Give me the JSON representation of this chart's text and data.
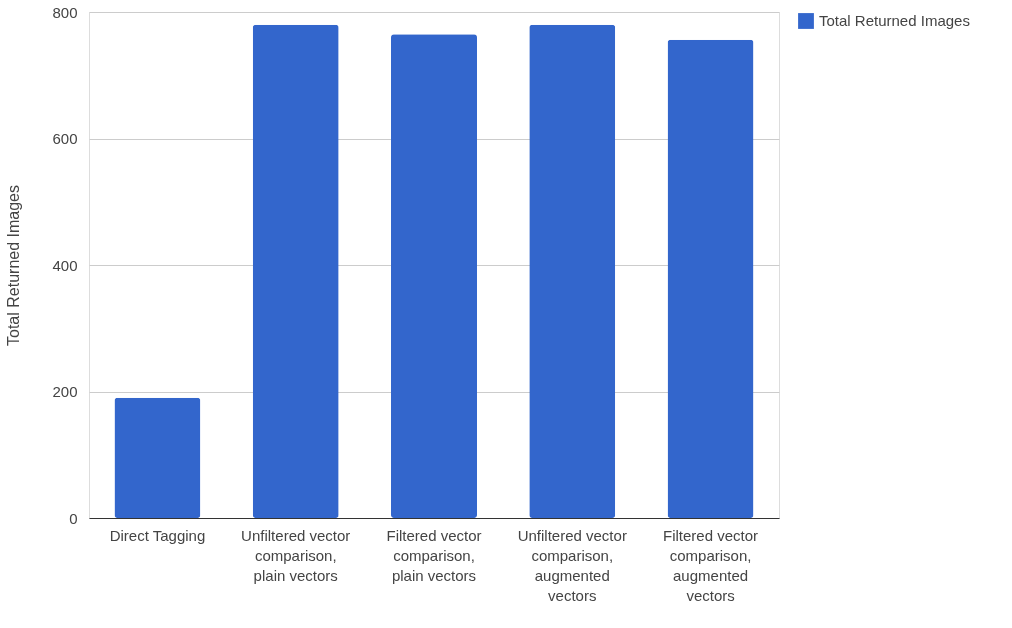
{
  "chart_data": {
    "type": "bar",
    "ylabel": "Total Returned Images",
    "categories": [
      "Direct Tagging",
      "Unfiltered vector comparison, plain vectors",
      "Filtered vector comparison, plain vectors",
      "Unfiltered vector comparison, augmented vectors",
      "Filtered vector comparison, augmented vectors"
    ],
    "series": [
      {
        "name": "Total Returned Images",
        "color": "#3366cc",
        "values": [
          190,
          780,
          765,
          780,
          756
        ]
      }
    ],
    "ylim": [
      0,
      800
    ],
    "yticks": [
      0,
      200,
      400,
      600,
      800
    ],
    "grid": "y",
    "legend": "top right"
  }
}
